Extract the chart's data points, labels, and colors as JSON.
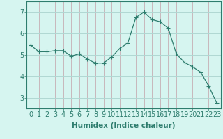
{
  "x": [
    0,
    1,
    2,
    3,
    4,
    5,
    6,
    7,
    8,
    9,
    10,
    11,
    12,
    13,
    14,
    15,
    16,
    17,
    18,
    19,
    20,
    21,
    22,
    23
  ],
  "y": [
    5.45,
    5.15,
    5.15,
    5.2,
    5.2,
    4.95,
    5.05,
    4.8,
    4.62,
    4.62,
    4.9,
    5.3,
    5.55,
    6.75,
    7.0,
    6.65,
    6.55,
    6.25,
    5.05,
    4.65,
    4.45,
    4.2,
    3.55,
    2.75
  ],
  "line_color": "#2e7d6e",
  "marker": "+",
  "marker_size": 4,
  "bg_color": "#d6f5f0",
  "grid_color_h": "#b0d8d3",
  "grid_color_v": "#c8b8bc",
  "xlabel": "Humidex (Indice chaleur)",
  "xlabel_fontsize": 7.5,
  "tick_fontsize": 7,
  "xlim": [
    -0.5,
    23.5
  ],
  "ylim": [
    2.5,
    7.5
  ],
  "yticks": [
    3,
    4,
    5,
    6,
    7
  ],
  "xticks": [
    0,
    1,
    2,
    3,
    4,
    5,
    6,
    7,
    8,
    9,
    10,
    11,
    12,
    13,
    14,
    15,
    16,
    17,
    18,
    19,
    20,
    21,
    22,
    23
  ]
}
